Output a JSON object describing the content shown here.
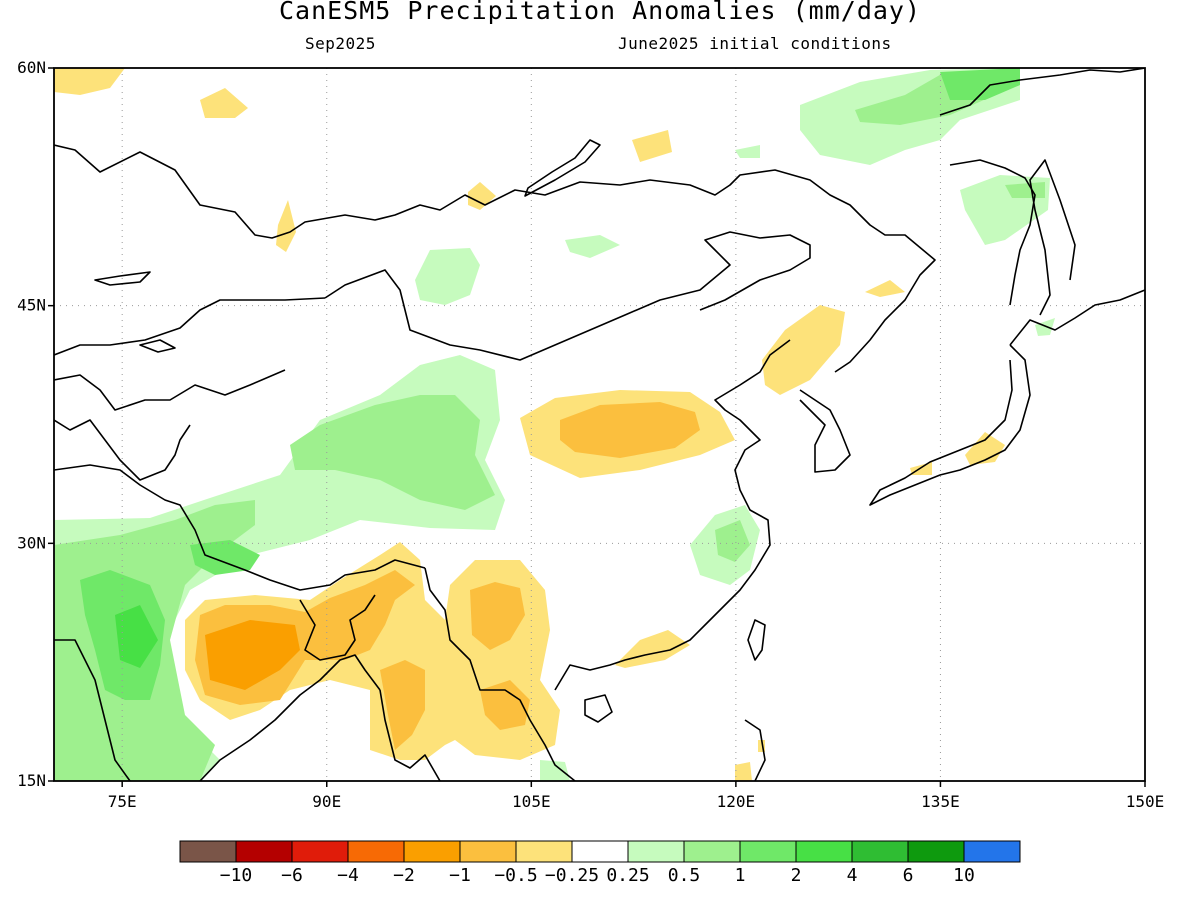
{
  "title": "CanESM5 Precipitation Anomalies (mm/day)",
  "subtitle_left": "Sep2025",
  "subtitle_right": "June2025 initial conditions",
  "map": {
    "lon_range": [
      70,
      150
    ],
    "lat_range": [
      15,
      60
    ],
    "lon_ticks": [
      {
        "value": 75,
        "label": "75E"
      },
      {
        "value": 90,
        "label": "90E"
      },
      {
        "value": 105,
        "label": "105E"
      },
      {
        "value": 120,
        "label": "120E"
      },
      {
        "value": 135,
        "label": "135E"
      },
      {
        "value": 150,
        "label": "150E"
      }
    ],
    "lat_ticks": [
      {
        "value": 15,
        "label": "15N"
      },
      {
        "value": 30,
        "label": "30N"
      },
      {
        "value": 45,
        "label": "45N"
      },
      {
        "value": 60,
        "label": "60N"
      }
    ],
    "grid": true
  },
  "colorbar": {
    "colors": [
      "#7a5548",
      "#b40000",
      "#e01c0a",
      "#f76a05",
      "#fa9f00",
      "#fbbf3e",
      "#fde27a",
      "#ffffff",
      "#c6fbbe",
      "#9ef08e",
      "#6fe868",
      "#47e045",
      "#2fbd33",
      "#0e9a0e",
      "#2375ea"
    ],
    "labels": [
      "−10",
      "−6",
      "−4",
      "−2",
      "−1",
      "−0.5",
      "−0.25",
      "0.25",
      "0.5",
      "1",
      "2",
      "4",
      "6",
      "10"
    ]
  },
  "anomaly_regions": [
    {
      "level": -1,
      "lon": 84.5,
      "lat": 22.5
    },
    {
      "level": -1,
      "lon": 110.5,
      "lat": 37.0
    },
    {
      "level": -1,
      "lon": 103.5,
      "lat": 26.0
    },
    {
      "level": -1,
      "lon": 96.0,
      "lat": 19.5
    },
    {
      "level": -0.5,
      "lon": 126.5,
      "lat": 42.5
    },
    {
      "level": 2,
      "lon": 75.5,
      "lat": 24.0
    },
    {
      "level": 1,
      "lon": 95.0,
      "lat": 35.5
    },
    {
      "level": 1,
      "lon": 135.0,
      "lat": 57.5
    },
    {
      "level": 1,
      "lon": 120.0,
      "lat": 30.0
    }
  ]
}
